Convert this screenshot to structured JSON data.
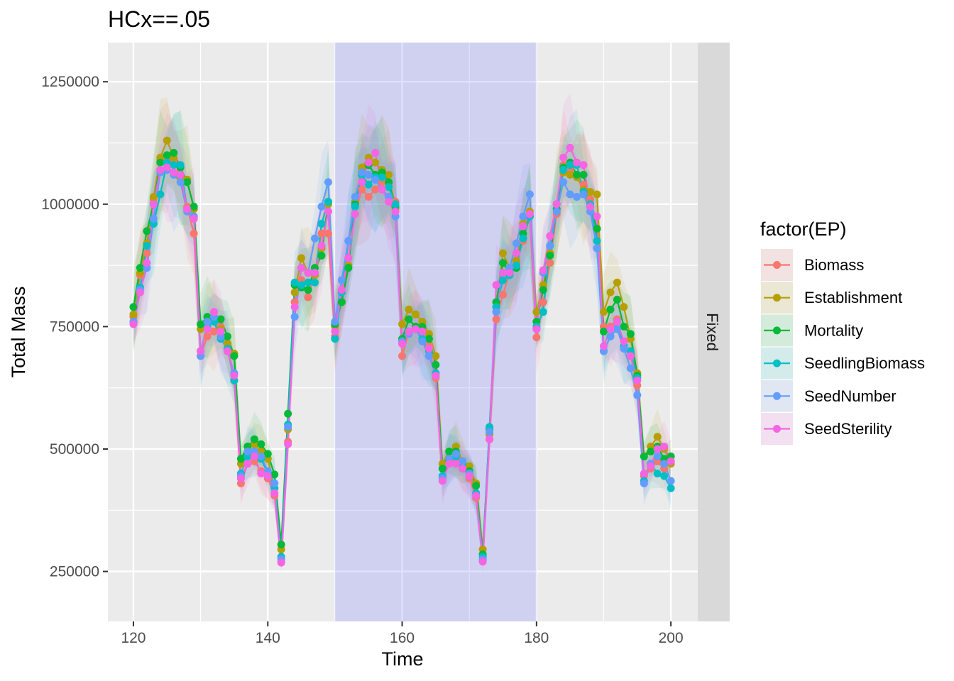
{
  "chart_data": {
    "type": "line",
    "title": "HCx==.05",
    "xlabel": "Time",
    "ylabel": "Total Mass",
    "facet_label": "Fixed",
    "xlim": [
      116.2,
      204.0
    ],
    "ylim": [
      148000,
      1330000
    ],
    "x_ticks": [
      120,
      140,
      160,
      180,
      200
    ],
    "x_tick_labels": [
      "120",
      "140",
      "160",
      "180",
      "200"
    ],
    "y_ticks": [
      250000,
      500000,
      750000,
      1000000,
      1250000
    ],
    "y_tick_labels": [
      "250000",
      "500000",
      "750000",
      "1000000",
      "1250000"
    ],
    "highlight_band": {
      "x_start": 150,
      "x_end": 180,
      "color": "#8080ff"
    },
    "grid": true,
    "legend": {
      "title": "factor(EP)",
      "position": "right"
    },
    "x": [
      120,
      121,
      122,
      123,
      124,
      125,
      126,
      127,
      128,
      129,
      130,
      131,
      132,
      133,
      134,
      135,
      136,
      137,
      138,
      139,
      140,
      141,
      142,
      143,
      144,
      145,
      146,
      147,
      148,
      149,
      150,
      151,
      152,
      153,
      154,
      155,
      156,
      157,
      158,
      159,
      160,
      161,
      162,
      163,
      164,
      165,
      166,
      167,
      168,
      169,
      170,
      171,
      172,
      173,
      174,
      175,
      176,
      177,
      178,
      179,
      180,
      181,
      182,
      183,
      184,
      185,
      186,
      187,
      188,
      189,
      190,
      191,
      192,
      193,
      194,
      195,
      196,
      197,
      198,
      199,
      200
    ],
    "series": [
      {
        "name": "Biomass",
        "color": "#F8766D",
        "values": [
          770000,
          855000,
          900000,
          1010000,
          1090000,
          1095000,
          1090000,
          1060000,
          995000,
          940000,
          690000,
          730000,
          740000,
          750000,
          715000,
          640000,
          430000,
          470000,
          475000,
          455000,
          440000,
          405000,
          270000,
          515000,
          800000,
          845000,
          810000,
          860000,
          940000,
          940000,
          730000,
          820000,
          890000,
          980000,
          1030000,
          1015000,
          1030000,
          1045000,
          1040000,
          1005000,
          690000,
          740000,
          750000,
          740000,
          710000,
          645000,
          440000,
          470000,
          480000,
          465000,
          440000,
          400000,
          272000,
          520000,
          765000,
          815000,
          860000,
          880000,
          925000,
          975000,
          728000,
          800000,
          880000,
          980000,
          1080000,
          1070000,
          1060000,
          1040000,
          1010000,
          950000,
          750000,
          750000,
          765000,
          705000,
          690000,
          630000,
          445000,
          460000,
          475000,
          460000,
          475000
        ]
      },
      {
        "name": "Establishment",
        "color": "#B79F00",
        "values": [
          775000,
          860000,
          920000,
          1015000,
          1095000,
          1130000,
          1095000,
          1055000,
          1050000,
          990000,
          745000,
          760000,
          770000,
          745000,
          715000,
          695000,
          470000,
          505000,
          510000,
          495000,
          480000,
          420000,
          295000,
          540000,
          820000,
          890000,
          860000,
          855000,
          910000,
          1000000,
          750000,
          800000,
          875000,
          1005000,
          1075000,
          1095000,
          1085000,
          1070000,
          1060000,
          990000,
          755000,
          785000,
          775000,
          760000,
          735000,
          690000,
          470000,
          495000,
          505000,
          475000,
          465000,
          430000,
          295000,
          530000,
          790000,
          900000,
          870000,
          885000,
          960000,
          985000,
          780000,
          835000,
          900000,
          1000000,
          1065000,
          1060000,
          1055000,
          1030000,
          1025000,
          1020000,
          780000,
          820000,
          840000,
          790000,
          725000,
          655000,
          485000,
          505000,
          525000,
          500000,
          470000
        ]
      },
      {
        "name": "Mortality",
        "color": "#00BA38",
        "values": [
          790000,
          870000,
          945000,
          1000000,
          1085000,
          1100000,
          1105000,
          1075000,
          1045000,
          995000,
          755000,
          770000,
          765000,
          765000,
          730000,
          690000,
          480000,
          505000,
          520000,
          510000,
          490000,
          448000,
          305000,
          572000,
          835000,
          830000,
          825000,
          870000,
          895000,
          1005000,
          755000,
          800000,
          870000,
          1000000,
          1065000,
          1080000,
          1060000,
          1065000,
          1045000,
          995000,
          725000,
          765000,
          750000,
          750000,
          725000,
          672000,
          460000,
          495000,
          495000,
          460000,
          455000,
          425000,
          285000,
          540000,
          800000,
          880000,
          860000,
          870000,
          940000,
          975000,
          760000,
          825000,
          895000,
          990000,
          1075000,
          1085000,
          1060000,
          1060000,
          995000,
          950000,
          740000,
          785000,
          805000,
          750000,
          735000,
          650000,
          485000,
          495000,
          505000,
          480000,
          485000
        ]
      },
      {
        "name": "SeedlingBiomass",
        "color": "#00BFC4",
        "values": [
          760000,
          830000,
          915000,
          960000,
          1020000,
          1085000,
          1080000,
          1080000,
          990000,
          975000,
          700000,
          750000,
          760000,
          725000,
          705000,
          640000,
          450000,
          485000,
          495000,
          480000,
          450000,
          420000,
          280000,
          550000,
          840000,
          835000,
          840000,
          840000,
          960000,
          1005000,
          725000,
          820000,
          925000,
          995000,
          1060000,
          1040000,
          1055000,
          1055000,
          1035000,
          1000000,
          720000,
          740000,
          745000,
          725000,
          700000,
          655000,
          445000,
          480000,
          485000,
          470000,
          450000,
          410000,
          280000,
          545000,
          790000,
          845000,
          855000,
          875000,
          930000,
          975000,
          750000,
          780000,
          915000,
          1000000,
          1070000,
          1080000,
          1080000,
          1025000,
          1000000,
          925000,
          700000,
          730000,
          760000,
          710000,
          700000,
          645000,
          435000,
          470000,
          450000,
          445000,
          420000
        ]
      },
      {
        "name": "SeedNumber",
        "color": "#619CFF",
        "values": [
          760000,
          825000,
          870000,
          970000,
          1065000,
          1070000,
          1060000,
          1045000,
          985000,
          975000,
          690000,
          760000,
          770000,
          730000,
          700000,
          655000,
          445000,
          495000,
          495000,
          485000,
          455000,
          430000,
          275000,
          545000,
          770000,
          870000,
          860000,
          930000,
          995000,
          1045000,
          760000,
          845000,
          925000,
          1015000,
          1065000,
          1060000,
          1050000,
          1030000,
          1015000,
          975000,
          720000,
          735000,
          745000,
          720000,
          690000,
          650000,
          440000,
          480000,
          490000,
          475000,
          450000,
          405000,
          275000,
          535000,
          780000,
          860000,
          870000,
          920000,
          975000,
          1020000,
          745000,
          860000,
          915000,
          985000,
          1045000,
          1020000,
          1015000,
          1020000,
          985000,
          910000,
          700000,
          730000,
          745000,
          705000,
          665000,
          610000,
          430000,
          470000,
          485000,
          470000,
          435000
        ]
      },
      {
        "name": "SeedSterility",
        "color": "#F564E3",
        "values": [
          755000,
          820000,
          880000,
          1000000,
          1070000,
          1075000,
          1065000,
          1060000,
          990000,
          970000,
          700000,
          745000,
          780000,
          740000,
          700000,
          650000,
          440000,
          470000,
          485000,
          450000,
          445000,
          410000,
          268000,
          510000,
          790000,
          870000,
          860000,
          860000,
          915000,
          985000,
          740000,
          825000,
          890000,
          980000,
          1045000,
          1085000,
          1105000,
          1030000,
          1005000,
          985000,
          715000,
          740000,
          745000,
          740000,
          705000,
          650000,
          435000,
          470000,
          470000,
          460000,
          445000,
          405000,
          270000,
          520000,
          835000,
          860000,
          860000,
          900000,
          955000,
          980000,
          745000,
          865000,
          935000,
          1000000,
          1095000,
          1115000,
          1085000,
          1080000,
          995000,
          975000,
          710000,
          745000,
          760000,
          720000,
          690000,
          640000,
          450000,
          465000,
          500000,
          505000,
          475000
        ]
      }
    ]
  }
}
